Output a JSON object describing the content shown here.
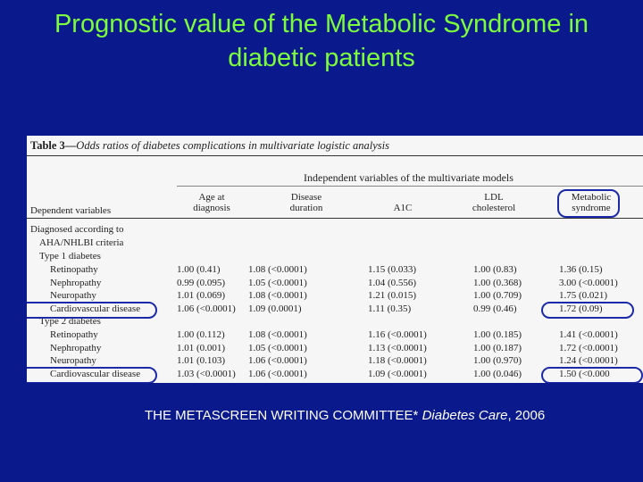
{
  "title": "Prognostic value of the Metabolic Syndrome in diabetic patients",
  "table": {
    "caption_bold": "Table 3—",
    "caption_italic": "Odds ratios of diabetes complications in multivariate logistic analysis",
    "group_header": "Independent variables of the multivariate models",
    "dependent_header": "Dependent variables",
    "columns": [
      "Age at diagnosis",
      "Disease duration",
      "A1C",
      "LDL cholesterol",
      "Metabolic syndrome"
    ],
    "section_label_1": "Diagnosed according to",
    "section_label_2": "AHA/NHLBI criteria",
    "group1_label": "Type 1 diabetes",
    "group2_label": "Type 2 diabetes",
    "type1_rows": [
      {
        "label": "Retinopathy",
        "values": [
          "1.00 (0.41)",
          "1.08 (<0.0001)",
          "1.15 (0.033)",
          "1.00 (0.83)",
          "1.36 (0.15)"
        ]
      },
      {
        "label": "Nephropathy",
        "values": [
          "0.99 (0.095)",
          "1.05 (<0.0001)",
          "1.04 (0.556)",
          "1.00 (0.368)",
          "3.00 (<0.0001)"
        ]
      },
      {
        "label": "Neuropathy",
        "values": [
          "1.01 (0.069)",
          "1.08 (<0.0001)",
          "1.21 (0.015)",
          "1.00 (0.709)",
          "1.75 (0.021)"
        ]
      },
      {
        "label": "Cardiovascular disease",
        "values": [
          "1.06 (<0.0001)",
          "1.09 (0.0001)",
          "1.11 (0.35)",
          "0.99 (0.46)",
          "1.72 (0.09)"
        ]
      }
    ],
    "type2_rows": [
      {
        "label": "Retinopathy",
        "values": [
          "1.00 (0.112)",
          "1.08 (<0.0001)",
          "1.16 (<0.0001)",
          "1.00 (0.185)",
          "1.41 (<0.0001)"
        ]
      },
      {
        "label": "Nephropathy",
        "values": [
          "1.01 (0.001)",
          "1.05 (<0.0001)",
          "1.13 (<0.0001)",
          "1.00 (0.187)",
          "1.72 (<0.0001)"
        ]
      },
      {
        "label": "Neuropathy",
        "values": [
          "1.01 (0.103)",
          "1.06 (<0.0001)",
          "1.18 (<0.0001)",
          "1.00 (0.970)",
          "1.24 (<0.0001)"
        ]
      },
      {
        "label": "Cardiovascular disease",
        "values": [
          "1.03 (<0.0001)",
          "1.06 (<0.0001)",
          "1.09 (<0.0001)",
          "1.00 (0.046)",
          "1.50 (<0.000"
        ]
      }
    ]
  },
  "citation": {
    "authors": "THE METASCREEN WRITING COMMITTEE* ",
    "journal": "Diabetes Care",
    "year": ", 2006"
  },
  "colors": {
    "background": "#0a1a8c",
    "title": "#7cfc3c",
    "highlight": "#1b2aa8"
  }
}
